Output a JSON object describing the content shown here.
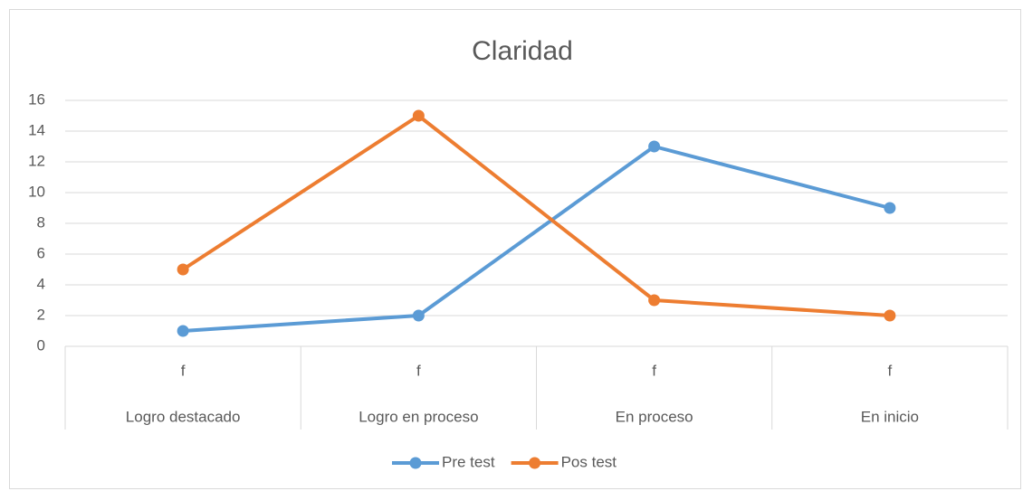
{
  "chart_data": {
    "type": "line",
    "title": "Claridad",
    "categories": [
      "Logro destacado",
      "Logro en proceso",
      "En proceso",
      "En inicio"
    ],
    "subcategories": [
      "f",
      "f",
      "f",
      "f"
    ],
    "series": [
      {
        "name": "Pre test",
        "color": "#5b9bd5",
        "values": [
          1,
          2,
          13,
          9
        ]
      },
      {
        "name": "Pos test",
        "color": "#ed7d31",
        "values": [
          5,
          15,
          3,
          2
        ]
      }
    ],
    "ylim": [
      0,
      16
    ],
    "yticks": [
      0,
      2,
      4,
      6,
      8,
      10,
      12,
      14,
      16
    ],
    "grid": true,
    "legend": "bottom"
  }
}
